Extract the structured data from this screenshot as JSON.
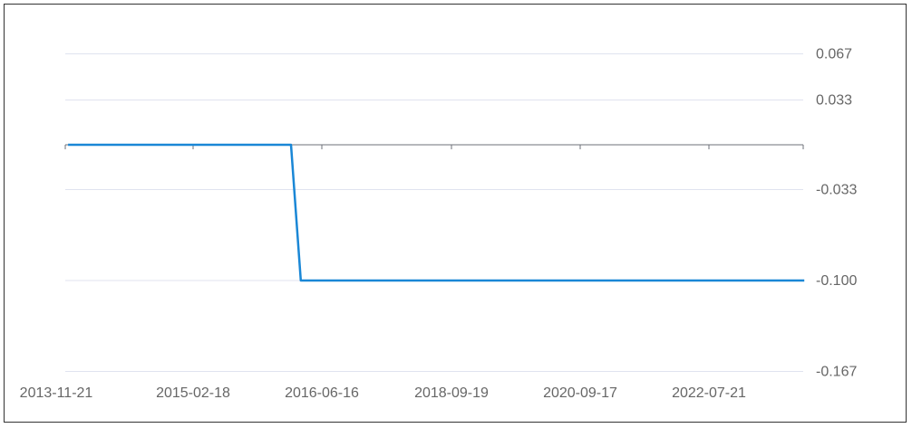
{
  "chart_data": {
    "type": "line",
    "title": "",
    "xlabel": "",
    "ylabel": "",
    "x_tick_labels": [
      "2013-11-21",
      "2015-02-18",
      "2016-06-16",
      "2018-09-19",
      "2020-09-17",
      "2022-07-21"
    ],
    "y_tick_labels": [
      "0.067",
      "0.033",
      "-0.033",
      "-0.100",
      "-0.167"
    ],
    "y_ticks": [
      0.067,
      0.033,
      -0.033,
      -0.1,
      -0.167
    ],
    "ylim": [
      -0.167,
      0.067
    ],
    "y_axis_position": "right",
    "grid": true,
    "series": [
      {
        "color": "#1a87d6",
        "points": [
          {
            "x": "2013-12-01",
            "y": 0
          },
          {
            "x": "2016-02-21",
            "y": 0
          },
          {
            "x": "2016-03-29",
            "y": -0.1
          },
          {
            "x": "2023-12-01",
            "y": -0.1
          }
        ]
      }
    ]
  }
}
